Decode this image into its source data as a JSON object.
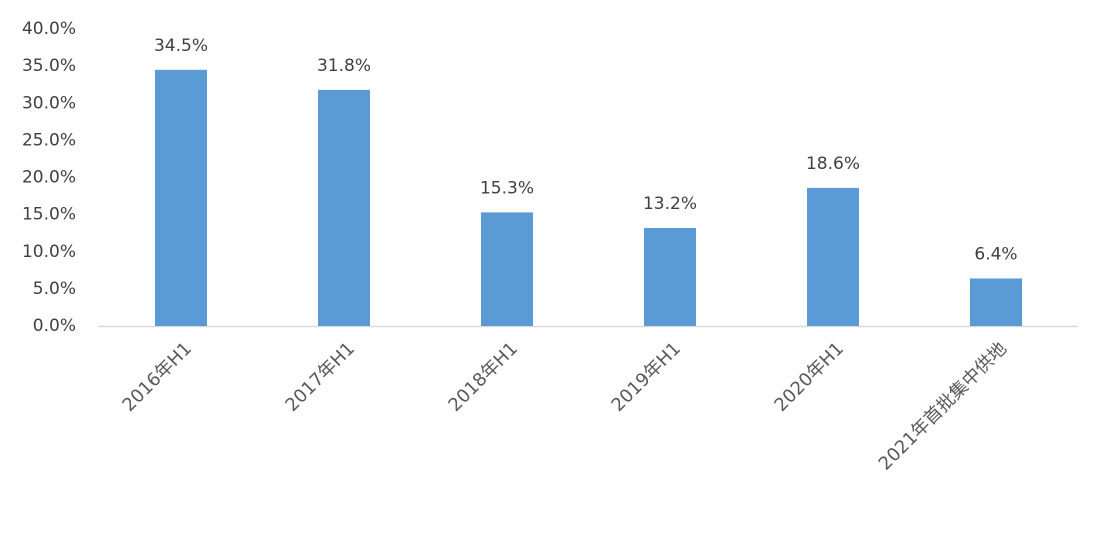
{
  "chart_data": {
    "type": "bar",
    "categories": [
      "2016年H1",
      "2017年H1",
      "2018年H1",
      "2019年H1",
      "2020年H1",
      "2021年首批集中供地"
    ],
    "values": [
      34.5,
      31.8,
      15.3,
      13.2,
      18.6,
      6.4
    ],
    "value_labels": [
      "34.5%",
      "31.8%",
      "15.3%",
      "13.2%",
      "18.6%",
      "6.4%"
    ],
    "color": "#5b9bd5",
    "ylim": [
      0,
      40
    ],
    "yticks": [
      {
        "value": 0,
        "label": "0.0%"
      },
      {
        "value": 5,
        "label": "5.0%"
      },
      {
        "value": 10,
        "label": "10.0%"
      },
      {
        "value": 15,
        "label": "15.0%"
      },
      {
        "value": 20,
        "label": "20.0%"
      },
      {
        "value": 25,
        "label": "25.0%"
      },
      {
        "value": 30,
        "label": "30.0%"
      },
      {
        "value": 35,
        "label": "35.0%"
      },
      {
        "value": 40,
        "label": "40.0%"
      }
    ],
    "grid": false
  }
}
